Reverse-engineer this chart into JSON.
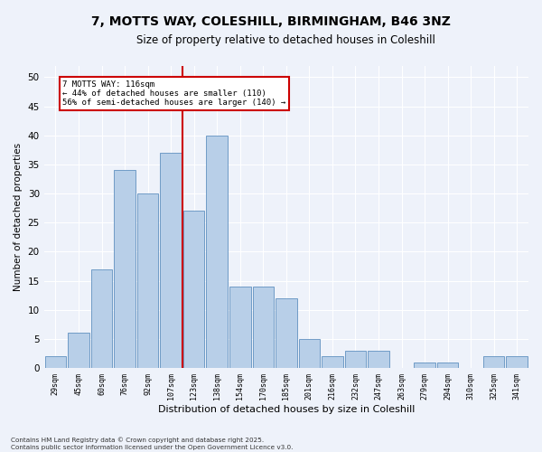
{
  "title_line1": "7, MOTTS WAY, COLESHILL, BIRMINGHAM, B46 3NZ",
  "title_line2": "Size of property relative to detached houses in Coleshill",
  "xlabel": "Distribution of detached houses by size in Coleshill",
  "ylabel": "Number of detached properties",
  "categories": [
    "29sqm",
    "45sqm",
    "60sqm",
    "76sqm",
    "92sqm",
    "107sqm",
    "123sqm",
    "138sqm",
    "154sqm",
    "170sqm",
    "185sqm",
    "201sqm",
    "216sqm",
    "232sqm",
    "247sqm",
    "263sqm",
    "279sqm",
    "294sqm",
    "310sqm",
    "325sqm",
    "341sqm"
  ],
  "values": [
    2,
    6,
    17,
    34,
    30,
    37,
    27,
    40,
    14,
    14,
    12,
    5,
    2,
    3,
    3,
    0,
    1,
    1,
    0,
    2,
    2
  ],
  "bar_color": "#b8cfe8",
  "bar_edge_color": "#6090c0",
  "background_color": "#eef2fa",
  "grid_color": "#ffffff",
  "marker_line_color": "#cc0000",
  "marker_label": "7 MOTTS WAY: 116sqm",
  "annotation_line1": "← 44% of detached houses are smaller (110)",
  "annotation_line2": "56% of semi-detached houses are larger (140) →",
  "annotation_box_color": "#ffffff",
  "annotation_box_edge": "#cc0000",
  "ylim": [
    0,
    52
  ],
  "yticks": [
    0,
    5,
    10,
    15,
    20,
    25,
    30,
    35,
    40,
    45,
    50
  ],
  "marker_bar_index": 6,
  "footer_line1": "Contains HM Land Registry data © Crown copyright and database right 2025.",
  "footer_line2": "Contains public sector information licensed under the Open Government Licence v3.0."
}
